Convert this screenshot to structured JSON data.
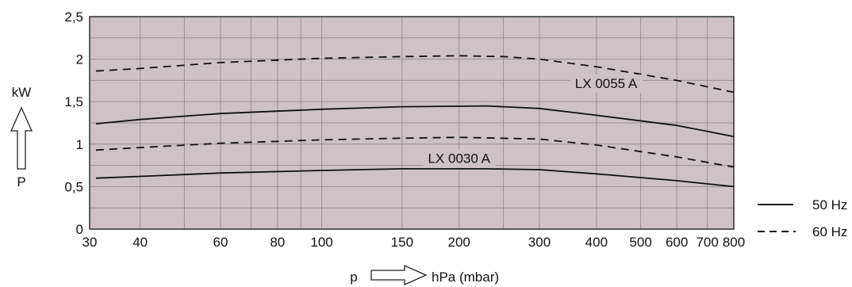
{
  "chart_data": {
    "type": "line",
    "x_scale": "log",
    "xlim": [
      31,
      800
    ],
    "ylim": [
      0,
      2.5
    ],
    "grid": true,
    "plot_background": "#cfc2c7",
    "x_ticks": [
      {
        "value": 30,
        "label": "30"
      },
      {
        "value": 40,
        "label": "40"
      },
      {
        "value": 60,
        "label": "60"
      },
      {
        "value": 80,
        "label": "80"
      },
      {
        "value": 100,
        "label": "100"
      },
      {
        "value": 150,
        "label": "150"
      },
      {
        "value": 200,
        "label": "200"
      },
      {
        "value": 300,
        "label": "300"
      },
      {
        "value": 400,
        "label": "400"
      },
      {
        "value": 500,
        "label": "500"
      },
      {
        "value": 600,
        "label": "600"
      },
      {
        "value": 700,
        "label": "700"
      },
      {
        "value": 800,
        "label": "800"
      }
    ],
    "x_minor_grid": [
      50,
      70,
      90,
      250
    ],
    "y_ticks": [
      {
        "value": 0,
        "label": "0"
      },
      {
        "value": 0.5,
        "label": "0,5"
      },
      {
        "value": 1,
        "label": "1"
      },
      {
        "value": 1.5,
        "label": "1,5"
      },
      {
        "value": 2,
        "label": "2"
      },
      {
        "value": 2.5,
        "label": "2,5"
      }
    ],
    "y_minor_grid": [
      0.25,
      0.75,
      1.25,
      1.75,
      2.25
    ],
    "y_axis_unit": "kW",
    "y_axis_symbol": "P",
    "x_axis_symbol": "p",
    "x_axis_unit": "hPa (mbar)",
    "series": [
      {
        "name": "50 Hz",
        "model": "LX 0055 A",
        "style": "solid",
        "points": [
          [
            32,
            1.24
          ],
          [
            40,
            1.29
          ],
          [
            60,
            1.36
          ],
          [
            100,
            1.41
          ],
          [
            150,
            1.44
          ],
          [
            230,
            1.45
          ],
          [
            300,
            1.42
          ],
          [
            400,
            1.34
          ],
          [
            600,
            1.22
          ],
          [
            800,
            1.09
          ]
        ]
      },
      {
        "name": "60 Hz",
        "model": "LX 0055 A",
        "style": "dashed",
        "points": [
          [
            32,
            1.86
          ],
          [
            40,
            1.89
          ],
          [
            60,
            1.96
          ],
          [
            100,
            2.01
          ],
          [
            150,
            2.03
          ],
          [
            200,
            2.04
          ],
          [
            250,
            2.03
          ],
          [
            300,
            2.0
          ],
          [
            400,
            1.91
          ],
          [
            600,
            1.75
          ],
          [
            800,
            1.61
          ]
        ]
      },
      {
        "name": "50 Hz",
        "model": "LX 0030 A",
        "style": "solid",
        "points": [
          [
            32,
            0.6
          ],
          [
            40,
            0.62
          ],
          [
            60,
            0.66
          ],
          [
            100,
            0.69
          ],
          [
            150,
            0.71
          ],
          [
            230,
            0.71
          ],
          [
            300,
            0.7
          ],
          [
            400,
            0.65
          ],
          [
            600,
            0.57
          ],
          [
            800,
            0.5
          ]
        ]
      },
      {
        "name": "60 Hz",
        "model": "LX 0030 A",
        "style": "dashed",
        "points": [
          [
            32,
            0.93
          ],
          [
            40,
            0.96
          ],
          [
            60,
            1.01
          ],
          [
            100,
            1.05
          ],
          [
            150,
            1.07
          ],
          [
            200,
            1.08
          ],
          [
            300,
            1.06
          ],
          [
            400,
            0.99
          ],
          [
            600,
            0.85
          ],
          [
            800,
            0.73
          ]
        ]
      }
    ],
    "annotations": [
      {
        "text": "LX 0055 A",
        "x": 420,
        "y": 1.66
      },
      {
        "text": "LX 0030 A",
        "x": 200,
        "y": 0.78
      }
    ],
    "legend": {
      "placement": "right",
      "entries": [
        {
          "label": "50 Hz",
          "style": "solid"
        },
        {
          "label": "60 Hz",
          "style": "dashed"
        }
      ]
    }
  }
}
